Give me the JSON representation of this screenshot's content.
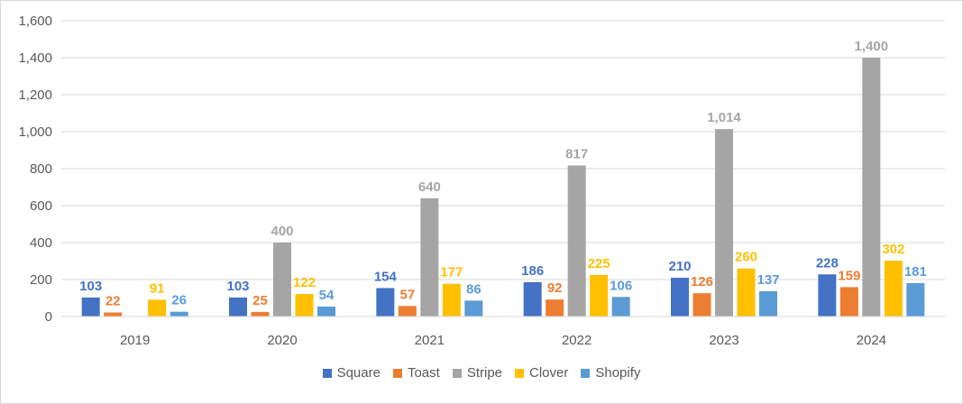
{
  "chart_data": {
    "type": "bar",
    "categories": [
      "2019",
      "2020",
      "2021",
      "2022",
      "2023",
      "2024"
    ],
    "series": [
      {
        "name": "Square",
        "color": "#4472c4",
        "values": [
          103,
          103,
          154,
          186,
          210,
          228
        ]
      },
      {
        "name": "Toast",
        "color": "#ed7d31",
        "values": [
          22,
          25,
          57,
          92,
          126,
          159
        ]
      },
      {
        "name": "Stripe",
        "color": "#a5a5a5",
        "values": [
          null,
          400,
          640,
          817,
          1014,
          1400
        ]
      },
      {
        "name": "Clover",
        "color": "#ffc000",
        "values": [
          91,
          122,
          177,
          225,
          260,
          302
        ]
      },
      {
        "name": "Shopify",
        "color": "#5b9bd5",
        "values": [
          26,
          54,
          86,
          106,
          137,
          181
        ]
      }
    ],
    "ylim": [
      0,
      1600
    ],
    "yticks": [
      0,
      200,
      400,
      600,
      800,
      1000,
      1200,
      1400,
      1600
    ],
    "ytick_labels": [
      "0",
      "200",
      "400",
      "600",
      "800",
      "1,000",
      "1,200",
      "1,400",
      "1,600"
    ],
    "grid": true,
    "legend_position": "bottom",
    "title": "",
    "xlabel": "",
    "ylabel": ""
  }
}
